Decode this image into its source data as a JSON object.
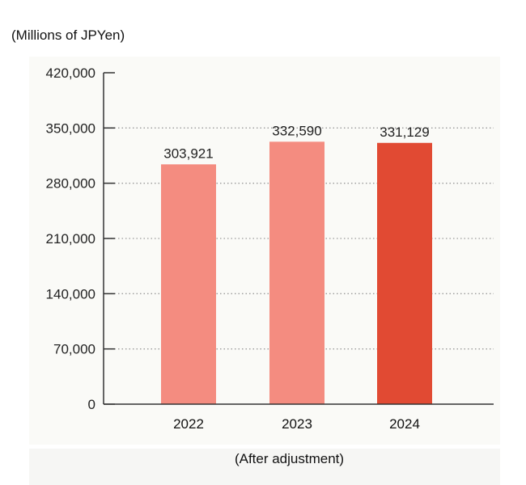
{
  "header": {
    "unit_label": "(Millions of JPYen)"
  },
  "footer": {
    "caption": "(After adjustment)"
  },
  "colors": {
    "bar_light": "#f48c80",
    "bar_highlight": "#e14a33",
    "axis": "#333333",
    "grid": "#9a9a9a"
  },
  "chart_data": {
    "type": "bar",
    "categories": [
      "2022",
      "2023",
      "2024"
    ],
    "values": [
      303921,
      332590,
      331129
    ],
    "value_labels": [
      "303,921",
      "332,590",
      "331,129"
    ],
    "highlight_category": "2024",
    "ylim": [
      0,
      420000
    ],
    "yticks": [
      0,
      70000,
      140000,
      210000,
      280000,
      350000,
      420000
    ],
    "ytick_labels": [
      "0",
      "70,000",
      "140,000",
      "210,000",
      "280,000",
      "350,000",
      "420,000"
    ],
    "grid": "dotted horizontal",
    "xlabel": "",
    "ylabel": "",
    "title": ""
  }
}
